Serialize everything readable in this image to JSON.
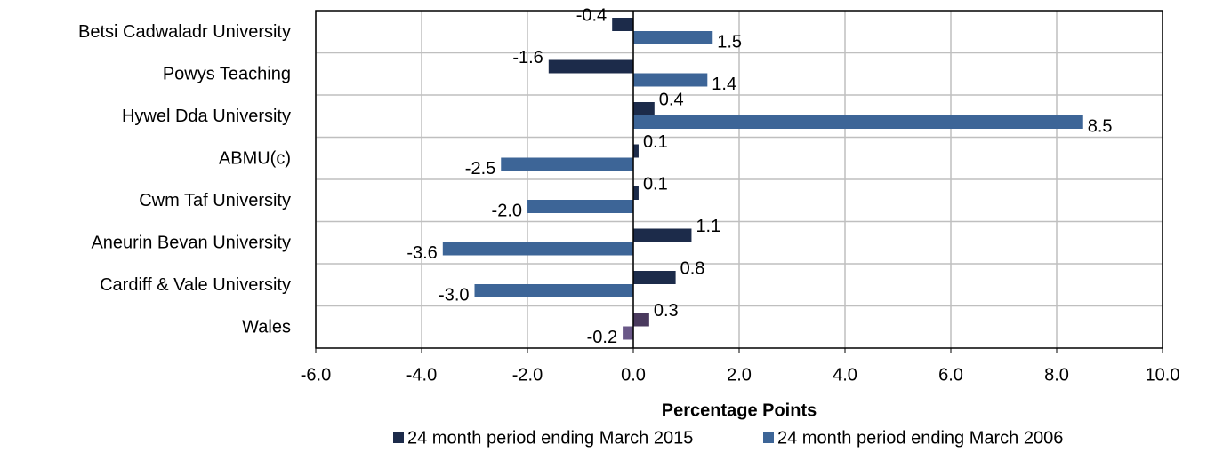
{
  "chart_data": {
    "type": "hbar",
    "categories": [
      "Betsi Cadwaladr University",
      "Powys Teaching",
      "Hywel Dda University",
      "ABMU(c)",
      "Cwm Taf University",
      "Aneurin Bevan University",
      "Cardiff & Vale University",
      "Wales"
    ],
    "series": [
      {
        "name": "24 month period ending March 2015",
        "color": "#1c2b4a",
        "colors": [
          "#1c2b4a",
          "#1c2b4a",
          "#1c2b4a",
          "#1c2b4a",
          "#1c2b4a",
          "#1c2b4a",
          "#1c2b4a",
          "#4a3a5e"
        ],
        "values": [
          -0.4,
          -1.6,
          0.4,
          0.1,
          0.1,
          1.1,
          0.8,
          0.3
        ],
        "value_labels": [
          "-0.4",
          "-1.6",
          "0.4",
          "0.1",
          "0.1",
          "1.1",
          "0.8",
          "0.3"
        ]
      },
      {
        "name": "24 month period ending March 2006",
        "color": "#3d6597",
        "colors": [
          "#3d6597",
          "#3d6597",
          "#3d6597",
          "#3d6597",
          "#3d6597",
          "#3d6597",
          "#3d6597",
          "#6a5888"
        ],
        "values": [
          1.5,
          1.4,
          8.5,
          -2.5,
          -2.0,
          -3.6,
          -3.0,
          -0.2
        ],
        "value_labels": [
          "1.5",
          "1.4",
          "8.5",
          "-2.5",
          "-2.0",
          "-3.6",
          "-3.0",
          "-0.2"
        ]
      }
    ],
    "x_label": "Percentage Points",
    "xlim": [
      -6,
      10
    ],
    "xticks": [
      {
        "value": -6,
        "label": "-6.0"
      },
      {
        "value": -4,
        "label": "-4.0"
      },
      {
        "value": -2,
        "label": "-2.0"
      },
      {
        "value": 0,
        "label": "0.0"
      },
      {
        "value": 2,
        "label": "2.0"
      },
      {
        "value": 4,
        "label": "4.0"
      },
      {
        "value": 6,
        "label": "6.0"
      },
      {
        "value": 8,
        "label": "8.0"
      },
      {
        "value": 10,
        "label": "10.0"
      }
    ],
    "grid": true,
    "legend": "bottom"
  }
}
